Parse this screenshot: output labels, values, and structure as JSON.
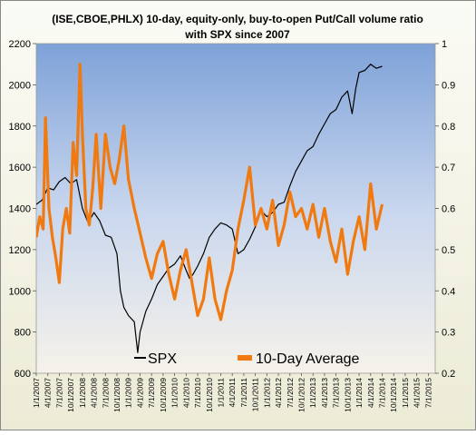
{
  "chart_data": {
    "type": "line",
    "title_lines": [
      "(ISE,CBOE,PHLX) 10-day, equity-only, buy-to-open Put/Call volume ratio",
      "with SPX since 2007"
    ],
    "left_axis": {
      "ylim": [
        600,
        2200
      ],
      "ticks": [
        "600",
        "800",
        "1000",
        "1200",
        "1400",
        "1600",
        "1800",
        "2000",
        "2200"
      ]
    },
    "right_axis": {
      "ylim": [
        0.2,
        1.0
      ],
      "ticks": [
        "0.2",
        "0.3",
        "0.4",
        "0.5",
        "0.6",
        "0.7",
        "0.8",
        "0.9",
        "1"
      ]
    },
    "x_ticks": [
      "1/1/2007",
      "4/1/2007",
      "7/1/2007",
      "10/1/2007",
      "1/1/2008",
      "4/1/2008",
      "7/1/2008",
      "10/1/2008",
      "1/1/2009",
      "4/1/2009",
      "7/1/2009",
      "10/1/2009",
      "1/1/2010",
      "4/1/2010",
      "7/1/2010",
      "10/1/2010",
      "1/1/2011",
      "4/1/2011",
      "7/1/2011",
      "10/1/2011",
      "1/1/2012",
      "4/1/2012",
      "7/1/2012",
      "10/1/2012",
      "1/1/2013",
      "4/1/2013",
      "7/1/2013",
      "10/1/2013",
      "1/1/2014",
      "4/1/2014",
      "7/1/2014",
      "10/1/2014",
      "1/1/2015",
      "4/1/2015",
      "7/1/2015"
    ],
    "x_range_quarters": [
      0,
      34.6
    ],
    "legend": {
      "placement": "bottom-center"
    },
    "series": [
      {
        "name": "SPX",
        "axis": "left",
        "color": "#000000",
        "points": [
          [
            0,
            1420
          ],
          [
            0.5,
            1440
          ],
          [
            1,
            1500
          ],
          [
            1.5,
            1490
          ],
          [
            2,
            1530
          ],
          [
            2.5,
            1550
          ],
          [
            3,
            1520
          ],
          [
            3.5,
            1540
          ],
          [
            4,
            1400
          ],
          [
            4.5,
            1330
          ],
          [
            5,
            1380
          ],
          [
            5.5,
            1340
          ],
          [
            6,
            1270
          ],
          [
            6.5,
            1260
          ],
          [
            7,
            1180
          ],
          [
            7.3,
            1000
          ],
          [
            7.6,
            920
          ],
          [
            8,
            880
          ],
          [
            8.5,
            850
          ],
          [
            8.8,
            700
          ],
          [
            9,
            800
          ],
          [
            9.5,
            900
          ],
          [
            10,
            960
          ],
          [
            10.5,
            1030
          ],
          [
            11,
            1070
          ],
          [
            11.5,
            1110
          ],
          [
            12,
            1130
          ],
          [
            12.5,
            1170
          ],
          [
            13,
            1100
          ],
          [
            13.3,
            1060
          ],
          [
            13.6,
            1080
          ],
          [
            14,
            1120
          ],
          [
            14.5,
            1180
          ],
          [
            15,
            1260
          ],
          [
            15.5,
            1300
          ],
          [
            16,
            1330
          ],
          [
            16.5,
            1320
          ],
          [
            17,
            1300
          ],
          [
            17.5,
            1180
          ],
          [
            18,
            1200
          ],
          [
            18.5,
            1250
          ],
          [
            19,
            1310
          ],
          [
            19.5,
            1390
          ],
          [
            20,
            1360
          ],
          [
            20.5,
            1380
          ],
          [
            21,
            1420
          ],
          [
            21.5,
            1430
          ],
          [
            22,
            1510
          ],
          [
            22.5,
            1580
          ],
          [
            23,
            1630
          ],
          [
            23.5,
            1680
          ],
          [
            24,
            1700
          ],
          [
            24.5,
            1760
          ],
          [
            25,
            1810
          ],
          [
            25.5,
            1860
          ],
          [
            26,
            1880
          ],
          [
            26.5,
            1940
          ],
          [
            27,
            1970
          ],
          [
            27.4,
            1860
          ],
          [
            27.7,
            1980
          ],
          [
            28,
            2060
          ],
          [
            28.5,
            2070
          ],
          [
            29,
            2100
          ],
          [
            29.5,
            2080
          ],
          [
            30,
            2090
          ]
        ]
      },
      {
        "name": "10-Day Average",
        "axis": "right",
        "color": "#f07a10",
        "points": [
          [
            0,
            0.53
          ],
          [
            0.3,
            0.58
          ],
          [
            0.6,
            0.55
          ],
          [
            0.8,
            0.82
          ],
          [
            1.1,
            0.6
          ],
          [
            1.4,
            0.53
          ],
          [
            1.7,
            0.48
          ],
          [
            2,
            0.42
          ],
          [
            2.3,
            0.55
          ],
          [
            2.6,
            0.6
          ],
          [
            2.9,
            0.54
          ],
          [
            3.2,
            0.76
          ],
          [
            3.5,
            0.68
          ],
          [
            3.8,
            0.95
          ],
          [
            4,
            0.78
          ],
          [
            4.3,
            0.6
          ],
          [
            4.6,
            0.56
          ],
          [
            4.9,
            0.65
          ],
          [
            5.2,
            0.78
          ],
          [
            5.6,
            0.6
          ],
          [
            6,
            0.78
          ],
          [
            6.4,
            0.7
          ],
          [
            6.8,
            0.66
          ],
          [
            7.2,
            0.72
          ],
          [
            7.6,
            0.8
          ],
          [
            8,
            0.67
          ],
          [
            8.5,
            0.6
          ],
          [
            9,
            0.54
          ],
          [
            9.5,
            0.48
          ],
          [
            10,
            0.43
          ],
          [
            10.5,
            0.49
          ],
          [
            11,
            0.52
          ],
          [
            11.5,
            0.44
          ],
          [
            12,
            0.38
          ],
          [
            12.5,
            0.45
          ],
          [
            13,
            0.5
          ],
          [
            13.5,
            0.42
          ],
          [
            14,
            0.34
          ],
          [
            14.5,
            0.38
          ],
          [
            15,
            0.48
          ],
          [
            15.5,
            0.38
          ],
          [
            16,
            0.33
          ],
          [
            16.5,
            0.4
          ],
          [
            17,
            0.45
          ],
          [
            17.5,
            0.55
          ],
          [
            18,
            0.62
          ],
          [
            18.5,
            0.7
          ],
          [
            19,
            0.56
          ],
          [
            19.5,
            0.6
          ],
          [
            20,
            0.55
          ],
          [
            20.5,
            0.62
          ],
          [
            21,
            0.51
          ],
          [
            21.5,
            0.56
          ],
          [
            22,
            0.64
          ],
          [
            22.5,
            0.58
          ],
          [
            23,
            0.6
          ],
          [
            23.5,
            0.55
          ],
          [
            24,
            0.61
          ],
          [
            24.5,
            0.53
          ],
          [
            25,
            0.6
          ],
          [
            25.5,
            0.52
          ],
          [
            26,
            0.47
          ],
          [
            26.5,
            0.55
          ],
          [
            27,
            0.44
          ],
          [
            27.5,
            0.52
          ],
          [
            28,
            0.58
          ],
          [
            28.5,
            0.5
          ],
          [
            29,
            0.66
          ],
          [
            29.5,
            0.55
          ],
          [
            30,
            0.61
          ]
        ]
      }
    ]
  }
}
